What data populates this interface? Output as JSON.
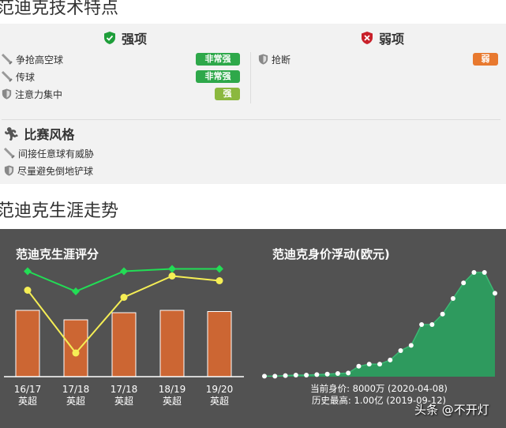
{
  "section1_title": "范迪克技术特点",
  "strengths": {
    "title": "强项",
    "icon": "shield-check-icon",
    "color": "#1e9e3a",
    "items": [
      {
        "label": "争抢高空球",
        "icon": "sword-icon",
        "level": "非常强",
        "level_color": "#2ea84a"
      },
      {
        "label": "传球",
        "icon": "sword-icon",
        "level": "非常强",
        "level_color": "#2ea84a"
      },
      {
        "label": "注意力集中",
        "icon": "shield-icon",
        "level": "强",
        "level_color": "#8bb83e"
      }
    ]
  },
  "weaknesses": {
    "title": "弱项",
    "icon": "shield-x-icon",
    "color": "#c8202a",
    "items": [
      {
        "label": "抢断",
        "icon": "shield-icon",
        "level": "弱",
        "level_color": "#e8792f"
      }
    ]
  },
  "style": {
    "title": "比赛风格",
    "icon": "runner-icon",
    "items": [
      {
        "label": "间接任意球有威胁",
        "icon": "sword-icon"
      },
      {
        "label": "尽量避免倒地铲球",
        "icon": "shield-icon"
      }
    ]
  },
  "section2_title": "范迪克生涯走势",
  "chart_data": [
    {
      "type": "bar+line",
      "title": "范迪克生涯评分",
      "categories": [
        [
          "16/17",
          "英超"
        ],
        [
          "17/18",
          "英超"
        ],
        [
          "17/18",
          "英超"
        ],
        [
          "18/19",
          "英超"
        ],
        [
          "19/20",
          "英超"
        ]
      ],
      "ylim": [
        0,
        100
      ],
      "grid": false,
      "legend": "none",
      "series": [
        {
          "kind": "bar",
          "color": "#cc6633",
          "values": [
            56,
            48,
            54,
            56,
            55
          ]
        },
        {
          "kind": "line",
          "color": "#22dd55",
          "values": [
            89,
            72,
            89,
            91,
            91
          ]
        },
        {
          "kind": "line",
          "color": "#f5ee55",
          "values": [
            73,
            20,
            67,
            85,
            81
          ]
        }
      ]
    },
    {
      "type": "area",
      "title": "范迪克身价浮动(欧元)",
      "unit": "万",
      "color": "#2e9a5e",
      "ylim": [
        0,
        10000
      ],
      "values": [
        50,
        50,
        100,
        150,
        150,
        200,
        250,
        300,
        350,
        1000,
        1200,
        1200,
        1600,
        2500,
        3000,
        5000,
        5000,
        6000,
        7500,
        9000,
        10000,
        10000,
        8000
      ],
      "current": "当前身价: 8000万 (2020-04-08)",
      "highest": "历史最高: 1.00亿 (2019-09-12)"
    }
  ],
  "watermark": "头条 @不开灯"
}
